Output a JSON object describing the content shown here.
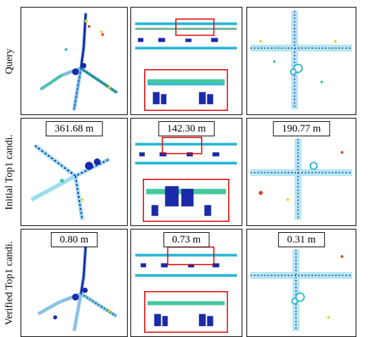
{
  "rows": [
    {
      "label": "Query",
      "distances": [
        "",
        "",
        ""
      ]
    },
    {
      "label": "Initial Top1 candi.",
      "distances": [
        "361.68 m",
        "142.30 m",
        "190.77 m"
      ]
    },
    {
      "label": "Verified Top1 candi.",
      "distances": [
        "0.80 m",
        "0.73 m",
        "0.31 m"
      ]
    }
  ],
  "colors": {
    "highlight_box": "#e00000",
    "points_low": "#1a2aa8",
    "points_mid": "#29b6d9",
    "points_high": "#e8d21a"
  }
}
